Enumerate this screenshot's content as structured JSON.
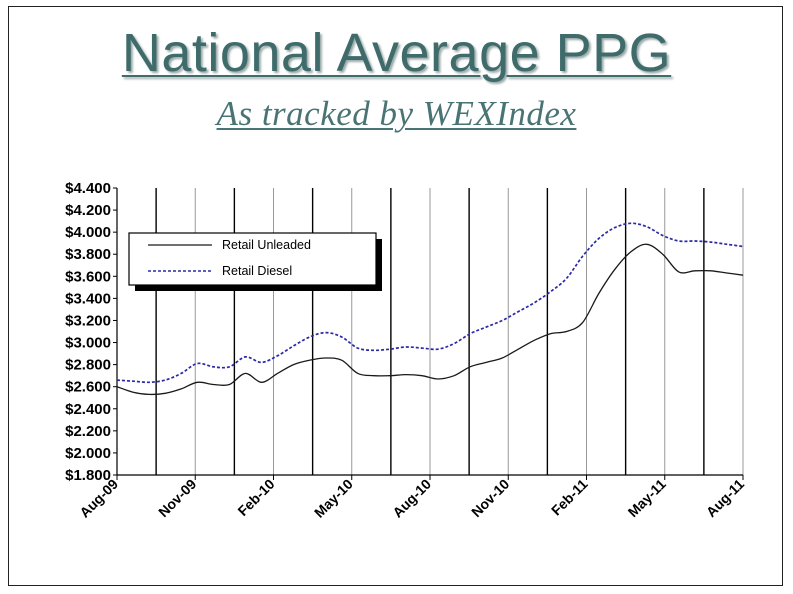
{
  "header": {
    "title": "National Average PPG",
    "subtitle": "As tracked by WEXIndex"
  },
  "colors": {
    "title": "#3f6b6b",
    "unleaded": "#1a1a1a",
    "diesel": "#2a2aa8"
  },
  "chart_data": {
    "type": "line",
    "ylim": [
      1.8,
      4.4
    ],
    "yticks": [
      1.8,
      2.0,
      2.2,
      2.4,
      2.6,
      2.8,
      3.0,
      3.2,
      3.4,
      3.6,
      3.8,
      4.0,
      4.2,
      4.4
    ],
    "ytick_labels": [
      "$1.800",
      "$2.000",
      "$2.200",
      "$2.400",
      "$2.600",
      "$2.800",
      "$3.000",
      "$3.200",
      "$3.400",
      "$3.600",
      "$3.800",
      "$4.000",
      "$4.200",
      "$4.400"
    ],
    "x_labels": [
      "Aug-09",
      "Nov-09",
      "Feb-10",
      "May-10",
      "Aug-10",
      "Nov-10",
      "Feb-11",
      "May-11",
      "Aug-11"
    ],
    "grid": "vertical lines",
    "legend_position": "top-left",
    "series": [
      {
        "name": "Retail Unleaded",
        "style": "solid",
        "points": [
          [
            0,
            2.6
          ],
          [
            0.5,
            2.55
          ],
          [
            1,
            2.53
          ],
          [
            1.5,
            2.54
          ],
          [
            2,
            2.58
          ],
          [
            2.5,
            2.64
          ],
          [
            3,
            2.62
          ],
          [
            3.5,
            2.62
          ],
          [
            4,
            2.72
          ],
          [
            4.5,
            2.64
          ],
          [
            5,
            2.72
          ],
          [
            5.5,
            2.8
          ],
          [
            6,
            2.84
          ],
          [
            6.5,
            2.86
          ],
          [
            7,
            2.84
          ],
          [
            7.5,
            2.72
          ],
          [
            8,
            2.7
          ],
          [
            8.5,
            2.7
          ],
          [
            9,
            2.71
          ],
          [
            9.5,
            2.7
          ],
          [
            10,
            2.67
          ],
          [
            10.5,
            2.7
          ],
          [
            11,
            2.78
          ],
          [
            11.5,
            2.82
          ],
          [
            12,
            2.86
          ],
          [
            12.5,
            2.94
          ],
          [
            13,
            3.02
          ],
          [
            13.5,
            3.08
          ],
          [
            14,
            3.1
          ],
          [
            14.5,
            3.18
          ],
          [
            15,
            3.44
          ],
          [
            15.5,
            3.66
          ],
          [
            16,
            3.82
          ],
          [
            16.5,
            3.89
          ],
          [
            17,
            3.8
          ],
          [
            17.5,
            3.64
          ],
          [
            18,
            3.65
          ],
          [
            18.5,
            3.65
          ],
          [
            19,
            3.63
          ],
          [
            19.5,
            3.61
          ]
        ]
      },
      {
        "name": "Retail Diesel",
        "style": "dashed",
        "points": [
          [
            0,
            2.66
          ],
          [
            0.5,
            2.65
          ],
          [
            1,
            2.64
          ],
          [
            1.5,
            2.66
          ],
          [
            2,
            2.72
          ],
          [
            2.5,
            2.81
          ],
          [
            3,
            2.78
          ],
          [
            3.5,
            2.78
          ],
          [
            4,
            2.87
          ],
          [
            4.5,
            2.82
          ],
          [
            5,
            2.88
          ],
          [
            5.5,
            2.97
          ],
          [
            6,
            3.05
          ],
          [
            6.5,
            3.09
          ],
          [
            7,
            3.05
          ],
          [
            7.5,
            2.95
          ],
          [
            8,
            2.93
          ],
          [
            8.5,
            2.94
          ],
          [
            9,
            2.96
          ],
          [
            9.5,
            2.95
          ],
          [
            10,
            2.94
          ],
          [
            10.5,
            2.99
          ],
          [
            11,
            3.08
          ],
          [
            11.5,
            3.14
          ],
          [
            12,
            3.2
          ],
          [
            12.5,
            3.28
          ],
          [
            13,
            3.36
          ],
          [
            13.5,
            3.46
          ],
          [
            14,
            3.58
          ],
          [
            14.5,
            3.78
          ],
          [
            15,
            3.94
          ],
          [
            15.5,
            4.04
          ],
          [
            16,
            4.08
          ],
          [
            16.5,
            4.05
          ],
          [
            17,
            3.97
          ],
          [
            17.5,
            3.92
          ],
          [
            18,
            3.92
          ],
          [
            18.5,
            3.91
          ],
          [
            19,
            3.89
          ],
          [
            19.5,
            3.87
          ]
        ]
      }
    ]
  }
}
